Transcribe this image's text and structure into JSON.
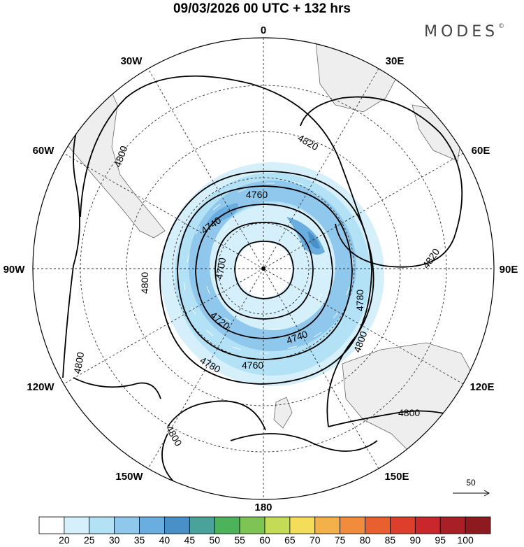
{
  "title": "09/03/2026  00 UTC  + 132 hrs",
  "brand": {
    "name": "MODES",
    "mark": "©"
  },
  "longitude_labels": [
    "0",
    "30E",
    "60E",
    "90E",
    "120E",
    "150E",
    "180",
    "150W",
    "120W",
    "90W",
    "60W",
    "30W"
  ],
  "contours": {
    "variable": "geopotential height",
    "labels": [
      "4700",
      "4720",
      "4740",
      "4760",
      "4780",
      "4800",
      "4820"
    ],
    "placed_labels": [
      {
        "text": "4820",
        "id": "4820-a"
      },
      {
        "text": "4820",
        "id": "4820-b"
      },
      {
        "text": "4800",
        "id": "4800-a"
      },
      {
        "text": "4800",
        "id": "4800-b"
      },
      {
        "text": "4800",
        "id": "4800-c"
      },
      {
        "text": "4800",
        "id": "4800-d"
      },
      {
        "text": "4800",
        "id": "4800-e"
      },
      {
        "text": "4800",
        "id": "4800-f"
      },
      {
        "text": "4780",
        "id": "4780-a"
      },
      {
        "text": "4780",
        "id": "4780-b"
      },
      {
        "text": "4760",
        "id": "4760-a"
      },
      {
        "text": "4760",
        "id": "4760-b"
      },
      {
        "text": "4740",
        "id": "4740-a"
      },
      {
        "text": "4740",
        "id": "4740-b"
      },
      {
        "text": "4720",
        "id": "4720-a"
      },
      {
        "text": "4700",
        "id": "4700-a"
      }
    ]
  },
  "colorbar": {
    "labels": [
      "20",
      "25",
      "30",
      "35",
      "40",
      "45",
      "50",
      "55",
      "60",
      "65",
      "70",
      "75",
      "80",
      "85",
      "90",
      "95",
      "100"
    ],
    "colors": [
      "#ffffff",
      "#d6f0fb",
      "#b3e1f6",
      "#8fc8ec",
      "#6aaee0",
      "#4a90c8",
      "#4aa39a",
      "#4db35a",
      "#7ec455",
      "#c3db55",
      "#f5dd5a",
      "#f4b14a",
      "#f08c3c",
      "#e9602f",
      "#de3f2c",
      "#c9272b",
      "#a81f25",
      "#8c1a1f"
    ]
  },
  "vector_reference": {
    "label": "50"
  },
  "colors": {
    "land": "#eeeeee",
    "contour": "#000000",
    "grid": "#333333"
  }
}
